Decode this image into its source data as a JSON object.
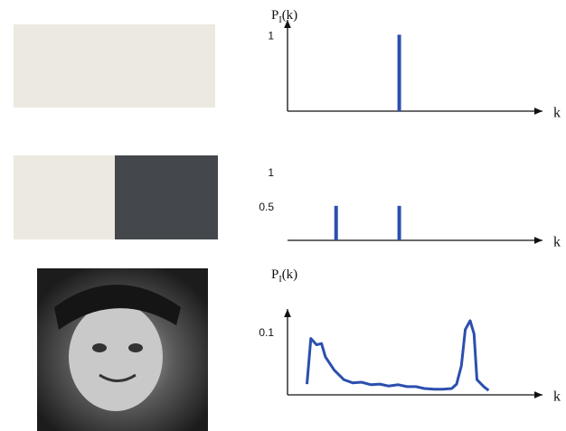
{
  "chart_data": [
    {
      "type": "bar",
      "ylabel_parts": [
        "P",
        "I",
        "(k)"
      ],
      "xlabel": "k",
      "x": [
        115
      ],
      "values": [
        1
      ],
      "color": "#2b4fae",
      "xlim": [
        0,
        255
      ],
      "ylim": [
        0,
        1.1
      ],
      "yticks": [
        1
      ],
      "y_axis": true
    },
    {
      "type": "bar",
      "xlabel": "k",
      "x": [
        50,
        115
      ],
      "values": [
        0.5,
        0.5
      ],
      "color": "#2b4fae",
      "xlim": [
        0,
        255
      ],
      "ylim": [
        0,
        1.1
      ],
      "yticks": [
        1,
        0.5
      ],
      "y_axis": false
    },
    {
      "type": "line",
      "ylabel_parts": [
        "P",
        "I",
        "(k)"
      ],
      "xlabel": "k",
      "x": [
        20,
        24,
        30,
        35,
        39,
        48,
        58,
        67,
        76,
        86,
        95,
        104,
        114,
        123,
        132,
        141,
        151,
        160,
        169,
        174,
        179,
        183,
        188,
        192,
        195,
        202,
        207
      ],
      "values": [
        0.017,
        0.089,
        0.079,
        0.081,
        0.06,
        0.039,
        0.024,
        0.019,
        0.02,
        0.016,
        0.017,
        0.014,
        0.016,
        0.013,
        0.013,
        0.01,
        0.009,
        0.009,
        0.01,
        0.017,
        0.046,
        0.103,
        0.117,
        0.096,
        0.024,
        0.013,
        0.007
      ],
      "color": "#2b4fae",
      "xlim": [
        0,
        255
      ],
      "ylim": [
        0,
        0.124
      ],
      "yticks": [
        0.1
      ],
      "y_axis": true
    }
  ]
}
